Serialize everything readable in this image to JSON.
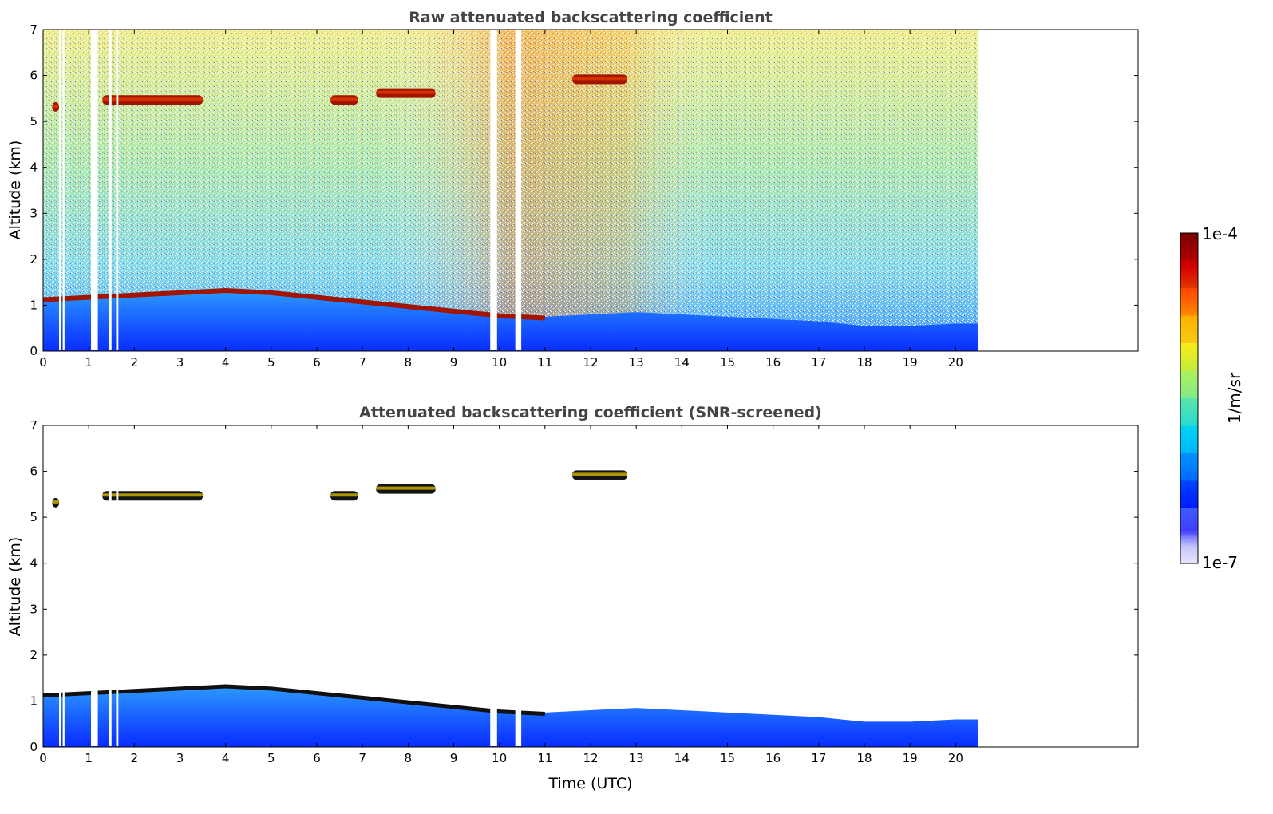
{
  "chart_data": [
    {
      "type": "heatmap",
      "title": "Raw attenuated backscattering coefficient",
      "xlabel": "",
      "ylabel": "Altitude (km)",
      "xlim": [
        0,
        24
      ],
      "ylim": [
        0,
        7
      ],
      "x_ticks": [
        "0",
        "1",
        "2",
        "3",
        "4",
        "5",
        "6",
        "7",
        "8",
        "9",
        "10",
        "11",
        "12",
        "13",
        "14",
        "15",
        "16",
        "17",
        "18",
        "19",
        "20"
      ],
      "y_ticks": [
        "0",
        "1",
        "2",
        "3",
        "4",
        "5",
        "6",
        "7"
      ],
      "data_end_time": 20.5,
      "data_gaps": [
        [
          0.35,
          0.38
        ],
        [
          0.43,
          0.47
        ],
        [
          1.05,
          1.2
        ],
        [
          1.45,
          1.5
        ],
        [
          1.6,
          1.65
        ],
        [
          9.8,
          9.95
        ],
        [
          10.35,
          10.48
        ]
      ],
      "features": [
        {
          "name": "boundary layer",
          "t": [
            0,
            1,
            2,
            3,
            4,
            5,
            6,
            7,
            8,
            9,
            10,
            11,
            12,
            13,
            14,
            15,
            16,
            17,
            18,
            19,
            20,
            20.5
          ],
          "top_km": [
            1.15,
            1.2,
            1.25,
            1.3,
            1.35,
            1.3,
            1.2,
            1.1,
            1.0,
            0.9,
            0.8,
            0.75,
            0.8,
            0.85,
            0.8,
            0.75,
            0.7,
            0.65,
            0.55,
            0.55,
            0.6,
            0.6
          ]
        },
        {
          "name": "cloud",
          "t_start": 0.2,
          "t_end": 0.35,
          "alt_km": 5.3
        },
        {
          "name": "cloud",
          "t_start": 1.3,
          "t_end": 3.5,
          "alt_km": 5.45
        },
        {
          "name": "cloud",
          "t_start": 6.3,
          "t_end": 6.9,
          "alt_km": 5.45
        },
        {
          "name": "cloud",
          "t_start": 7.3,
          "t_end": 8.6,
          "alt_km": 5.6
        },
        {
          "name": "cloud",
          "t_start": 11.6,
          "t_end": 12.8,
          "alt_km": 5.9
        },
        {
          "name": "aerosol layer",
          "t_start": 0.0,
          "t_end": 11.6,
          "alt_km": 1.1
        }
      ]
    },
    {
      "type": "heatmap",
      "title": "Attenuated backscattering coefficient (SNR-screened)",
      "xlabel": "Time (UTC)",
      "ylabel": "Altitude (km)",
      "xlim": [
        0,
        24
      ],
      "ylim": [
        0,
        7
      ],
      "x_ticks": [
        "0",
        "1",
        "2",
        "3",
        "4",
        "5",
        "6",
        "7",
        "8",
        "9",
        "10",
        "11",
        "12",
        "13",
        "14",
        "15",
        "16",
        "17",
        "18",
        "19",
        "20"
      ],
      "y_ticks": [
        "0",
        "1",
        "2",
        "3",
        "4",
        "5",
        "6",
        "7"
      ],
      "data_end_time": 20.5,
      "data_gaps": [
        [
          0.35,
          0.38
        ],
        [
          0.43,
          0.47
        ],
        [
          1.05,
          1.2
        ],
        [
          1.45,
          1.5
        ],
        [
          1.6,
          1.65
        ],
        [
          9.8,
          9.95
        ],
        [
          10.35,
          10.48
        ]
      ],
      "features": [
        {
          "name": "boundary layer",
          "t": [
            0,
            1,
            2,
            3,
            4,
            5,
            6,
            7,
            8,
            9,
            10,
            11,
            12,
            13,
            14,
            15,
            16,
            17,
            18,
            19,
            20,
            20.5
          ],
          "top_km": [
            1.15,
            1.2,
            1.25,
            1.3,
            1.35,
            1.3,
            1.2,
            1.1,
            1.0,
            0.9,
            0.8,
            0.75,
            0.8,
            0.85,
            0.8,
            0.75,
            0.7,
            0.65,
            0.55,
            0.55,
            0.6,
            0.6
          ]
        },
        {
          "name": "cloud",
          "t_start": 0.2,
          "t_end": 0.35,
          "alt_km": 5.3
        },
        {
          "name": "cloud",
          "t_start": 1.3,
          "t_end": 3.5,
          "alt_km": 5.45
        },
        {
          "name": "cloud",
          "t_start": 6.3,
          "t_end": 6.9,
          "alt_km": 5.45
        },
        {
          "name": "cloud",
          "t_start": 7.3,
          "t_end": 8.6,
          "alt_km": 5.6
        },
        {
          "name": "cloud",
          "t_start": 11.6,
          "t_end": 12.8,
          "alt_km": 5.9
        }
      ]
    }
  ],
  "colorbar": {
    "label": "1/m/sr",
    "max_label": "1e-4",
    "min_label": "1e-7",
    "colors": [
      "#e6e6fa",
      "#b4b4ff",
      "#0000ff",
      "#0064ff",
      "#00c8ff",
      "#5ae6aa",
      "#c8f050",
      "#ffe600",
      "#ff8c00",
      "#ff2800",
      "#b40000",
      "#780000"
    ]
  }
}
